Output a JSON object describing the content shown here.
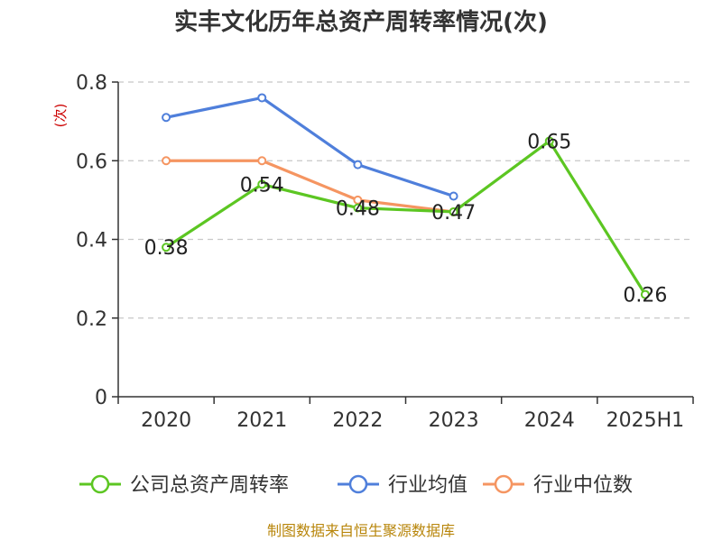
{
  "chart_data": {
    "type": "line",
    "title": "实丰文化历年总资产周转率情况(次)",
    "ylabel": "(次)",
    "ylim": [
      0,
      0.8
    ],
    "yticks": [
      0,
      0.2,
      0.4,
      0.6,
      0.8
    ],
    "ytick_labels": [
      "0",
      "0.2",
      "0.4",
      "0.6",
      "0.8"
    ],
    "grid": true,
    "legend_position": "bottom",
    "categories": [
      "2020",
      "2021",
      "2022",
      "2023",
      "2024",
      "2025H1"
    ],
    "series": [
      {
        "name": "公司总资产周转率",
        "color": "#5cc622",
        "values": [
          0.38,
          0.54,
          0.48,
          0.47,
          0.65,
          0.26
        ],
        "labels": [
          "0.38",
          "0.54",
          "0.48",
          "0.47",
          "0.65",
          "0.26"
        ]
      },
      {
        "name": "行业均值",
        "color": "#4f7fdb",
        "values": [
          0.71,
          0.76,
          0.59,
          0.51,
          null,
          null
        ]
      },
      {
        "name": "行业中位数",
        "color": "#f59561",
        "values": [
          0.6,
          0.6,
          0.5,
          0.47,
          null,
          null
        ]
      }
    ],
    "source": "制图数据来自恒生聚源数据库"
  }
}
